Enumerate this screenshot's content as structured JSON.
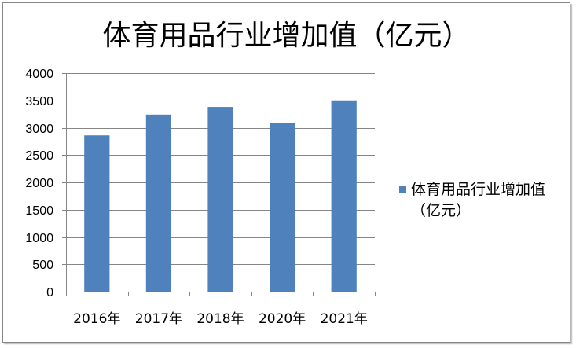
{
  "chart_data": {
    "type": "bar",
    "title": "体育用品行业增加值（亿元）",
    "categories": [
      "2016年",
      "2017年",
      "2018年",
      "2020年",
      "2021年"
    ],
    "series": [
      {
        "name": "体育用品行业增加值（亿元）",
        "values": [
          2860,
          3240,
          3380,
          3090,
          3500
        ],
        "color": "#4F81BD"
      }
    ],
    "ylim": [
      0,
      4000
    ],
    "yticks": [
      0,
      500,
      1000,
      1500,
      2000,
      2500,
      3000,
      3500,
      4000
    ],
    "grid": true,
    "legend": "right",
    "colors": {
      "grid": "#868686",
      "axis": "#868686"
    }
  }
}
